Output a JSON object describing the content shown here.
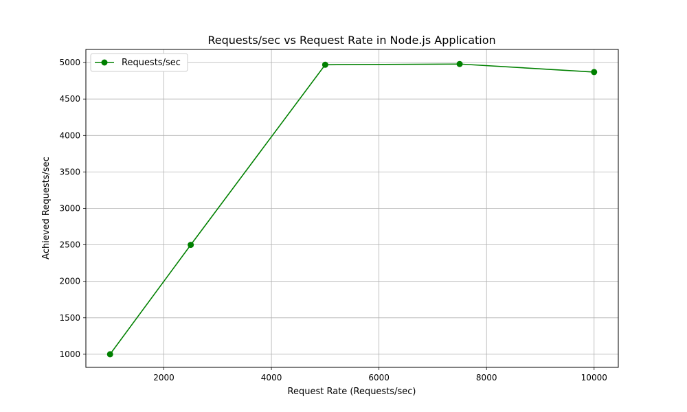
{
  "chart_data": {
    "type": "line",
    "title": "Requests/sec vs Request Rate in Node.js Application",
    "xlabel": "Request Rate (Requests/sec)",
    "ylabel": "Achieved Requests/sec",
    "xlim": [
      550,
      10450
    ],
    "ylim": [
      820,
      5180
    ],
    "xticks": [
      2000,
      4000,
      6000,
      8000,
      10000
    ],
    "yticks": [
      1000,
      1500,
      2000,
      2500,
      3000,
      3500,
      4000,
      4500,
      5000
    ],
    "grid": true,
    "legend_position": "top-left",
    "series": [
      {
        "name": "Requests/sec",
        "color": "#008000",
        "marker": "circle",
        "x": [
          1000,
          2500,
          5000,
          7500,
          10000
        ],
        "y": [
          1000,
          2500,
          4970,
          4980,
          4870
        ]
      }
    ]
  }
}
